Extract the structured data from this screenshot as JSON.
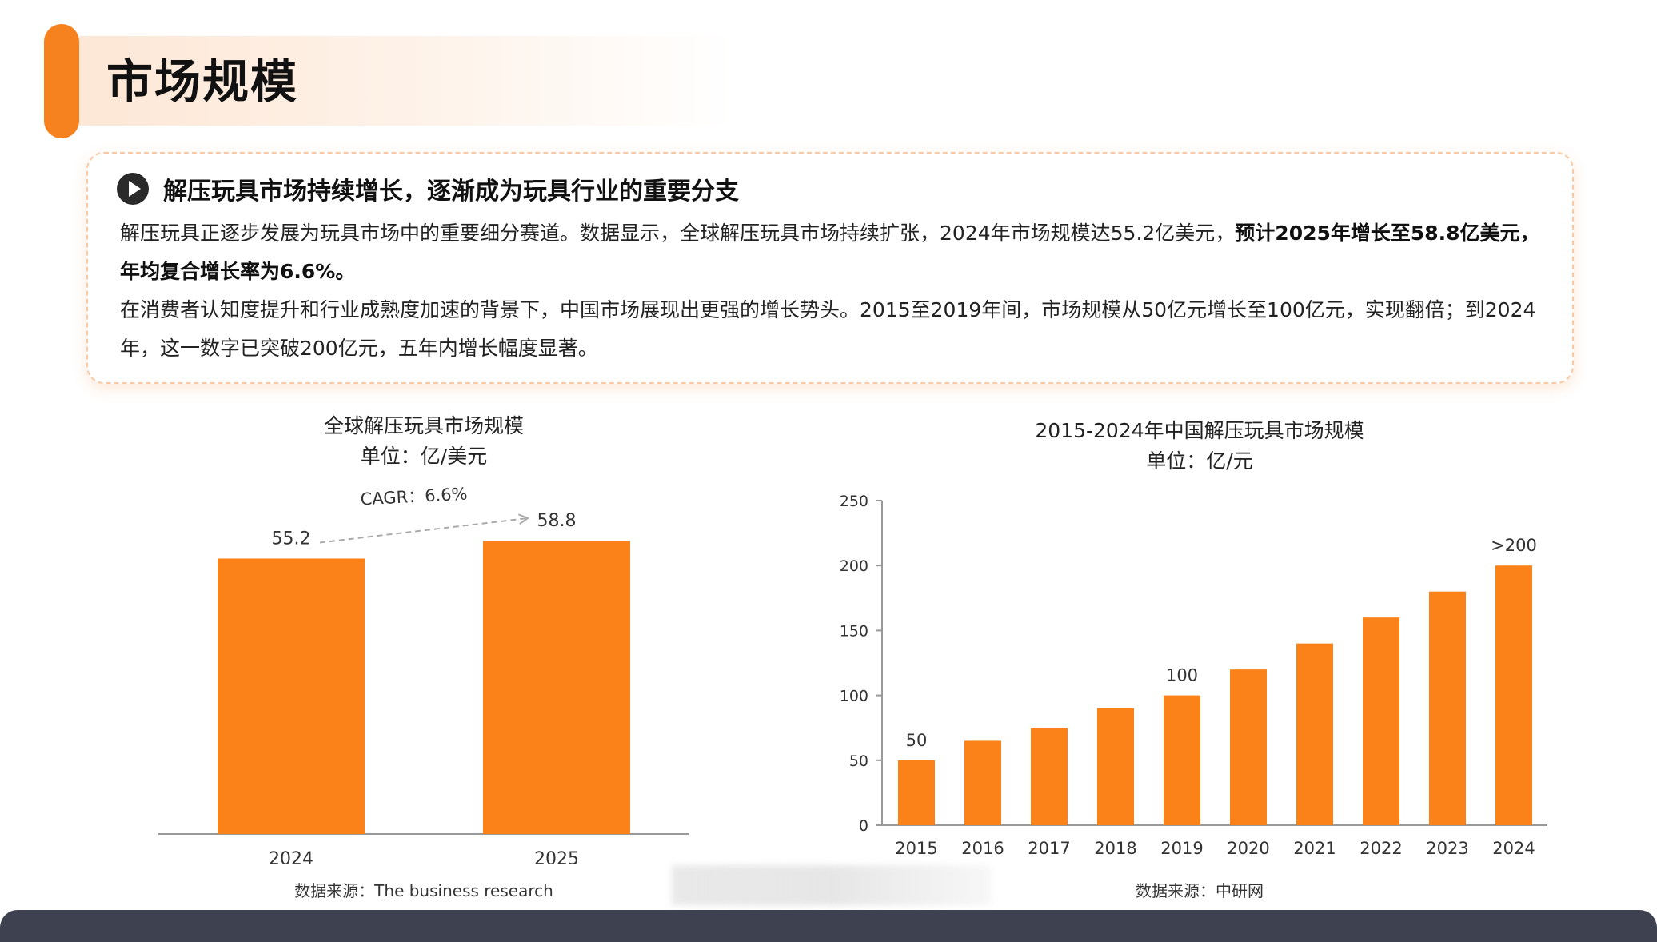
{
  "header": {
    "title": "市场规模"
  },
  "info": {
    "title": "解压玩具市场持续增长，逐渐成为玩具行业的重要分支",
    "p1_normal": "解压玩具正逐步发展为玩具市场中的重要细分赛道。数据显示，全球解压玩具市场持续扩张，2024年市场规模达55.2亿美元，",
    "p1_bold": "预计2025年增长至58.8亿美元，年均复合增长率为6.6%。",
    "p2": "在消费者认知度提升和行业成熟度加速的背景下，中国市场展现出更强的增长势头。2015至2019年间，市场规模从50亿元增长至100亿元，实现翻倍；到2024年，这一数字已突破200亿元，五年内增长幅度显著。"
  },
  "colors": {
    "accent": "#f5821f",
    "bar": "#fb8219",
    "footer": "#3d4150"
  },
  "chart_data": [
    {
      "type": "bar",
      "title": "全球解压玩具市场规模",
      "subtitle": "单位：亿/美元",
      "categories": [
        "2024",
        "2025"
      ],
      "values": [
        55.2,
        58.8
      ],
      "value_labels": [
        "55.2",
        "58.8"
      ],
      "annotation": "CAGR：6.6%",
      "ylim": [
        0,
        58.8
      ],
      "source": "数据来源：The business research"
    },
    {
      "type": "bar",
      "title": "2015-2024年中国解压玩具市场规模",
      "subtitle": "单位：亿/元",
      "categories": [
        "2015",
        "2016",
        "2017",
        "2018",
        "2019",
        "2020",
        "2021",
        "2022",
        "2023",
        "2024"
      ],
      "values": [
        50,
        65,
        75,
        90,
        100,
        120,
        140,
        160,
        180,
        200
      ],
      "value_labels": [
        "50",
        "",
        "",
        "",
        "100",
        "",
        "",
        "",
        "",
        ">200"
      ],
      "yticks": [
        0,
        50,
        100,
        150,
        200,
        250
      ],
      "ylim": [
        0,
        250
      ],
      "source": "数据来源：中研网"
    }
  ]
}
